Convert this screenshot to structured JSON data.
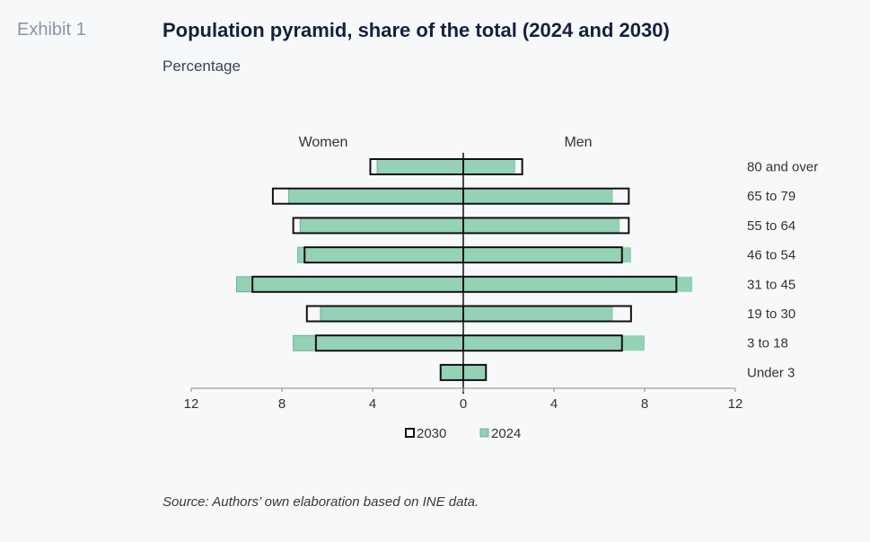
{
  "header": {
    "exhibit": "Exhibit 1",
    "title": "Population pyramid, share of the total (2024 and 2030)",
    "subtitle": "Percentage"
  },
  "footer": {
    "source": "Source: Authors’ own elaboration based on INE data."
  },
  "colors": {
    "bar_2024": "#94d1b5",
    "bar_2024_edge": "#5aa594",
    "bar_2030_outline": "#111111",
    "axis": "#888888",
    "zero_line": "#111111"
  },
  "chart_data": {
    "type": "bar",
    "orientation": "horizontal-pyramid",
    "title": "Population pyramid, share of the total (2024 and 2030)",
    "subtitle": "Percentage",
    "side_labels": {
      "left": "Women",
      "right": "Men"
    },
    "categories": [
      "80 and over",
      "65 to 79",
      "55 to 64",
      "46 to 54",
      "31 to 45",
      "19 to 30",
      "3 to 18",
      "Under 3"
    ],
    "xlim": [
      -12,
      12
    ],
    "x_ticks": [
      -12,
      -8,
      -4,
      0,
      4,
      8,
      12
    ],
    "x_tick_labels": [
      "12",
      "8",
      "4",
      "0",
      "4",
      "8",
      "12"
    ],
    "series": [
      {
        "name": "2024",
        "style": "filled",
        "women": [
          3.8,
          7.7,
          7.2,
          7.3,
          10.0,
          6.3,
          7.5,
          1.0
        ],
        "men": [
          2.3,
          6.6,
          6.9,
          7.4,
          10.1,
          6.6,
          8.0,
          1.0
        ]
      },
      {
        "name": "2030",
        "style": "outline",
        "women": [
          4.1,
          8.4,
          7.5,
          7.0,
          9.3,
          6.9,
          6.5,
          1.0
        ],
        "men": [
          2.6,
          7.3,
          7.3,
          7.0,
          9.4,
          7.4,
          7.0,
          1.0
        ]
      }
    ],
    "legend": {
      "position": "bottom-center",
      "entries": [
        "2030",
        "2024"
      ]
    },
    "grid": false
  }
}
